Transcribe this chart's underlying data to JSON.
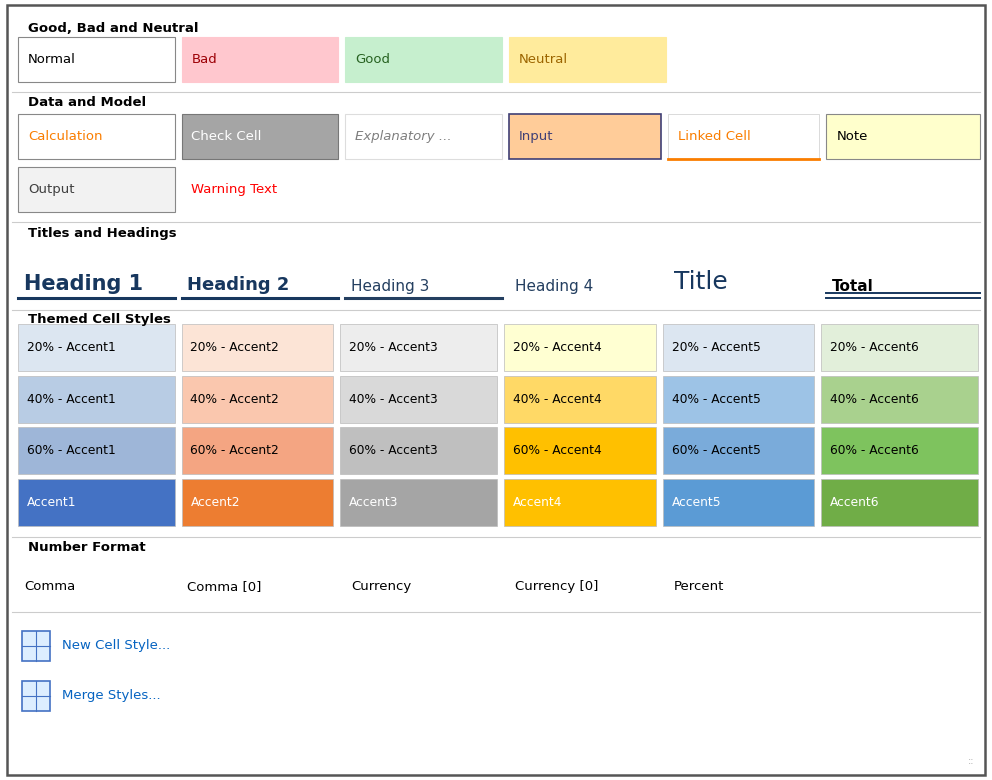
{
  "bg_color": "#ffffff",
  "outer_border": "#555555",
  "section1_title": "Good, Bad and Neutral",
  "section2_title": "Data and Model",
  "section3_title": "Titles and Headings",
  "section4_title": "Themed Cell Styles",
  "section5_title": "Number Format",
  "good_bad_cells": [
    {
      "label": "Normal",
      "bg": "#ffffff",
      "fg": "#000000",
      "border": "#888888"
    },
    {
      "label": "Bad",
      "bg": "#ffc7ce",
      "fg": "#9c0006",
      "border": "#ffc7ce"
    },
    {
      "label": "Good",
      "bg": "#c6efce",
      "fg": "#276221",
      "border": "#c6efce"
    },
    {
      "label": "Neutral",
      "bg": "#ffeb9c",
      "fg": "#9c6500",
      "border": "#ffeb9c"
    }
  ],
  "data_model_row1": [
    {
      "label": "Calculation",
      "bg": "#ffffff",
      "fg": "#fa7d00",
      "border": "#888888",
      "italic": false
    },
    {
      "label": "Check Cell",
      "bg": "#a5a5a5",
      "fg": "#ffffff",
      "border": "#777777",
      "italic": false
    },
    {
      "label": "Explanatory ...",
      "bg": "#ffffff",
      "fg": "#7f7f7f",
      "border": "#dddddd",
      "italic": true
    },
    {
      "label": "Input",
      "bg": "#ffcc99",
      "fg": "#3f3f76",
      "border": "#3f3f76",
      "italic": false
    },
    {
      "label": "Linked Cell",
      "bg": "#ffffff",
      "fg": "#fa7d00",
      "border": "#fa7d00",
      "italic": false,
      "linked": true
    },
    {
      "label": "Note",
      "bg": "#ffffcc",
      "fg": "#000000",
      "border": "#888888",
      "italic": false
    }
  ],
  "data_model_row2": [
    {
      "label": "Output",
      "bg": "#f2f2f2",
      "fg": "#3f3f3f",
      "border": "#888888"
    },
    {
      "label": "Warning Text",
      "bg": "#ffffff",
      "fg": "#ff0000",
      "border": "#ffffff"
    }
  ],
  "headings": [
    {
      "label": "Heading 1",
      "fg": "#17375e",
      "size": 15,
      "bold": true,
      "underline": true,
      "underline_color": "#17375e"
    },
    {
      "label": "Heading 2",
      "fg": "#17375e",
      "size": 13,
      "bold": true,
      "underline": true,
      "underline_color": "#17375e"
    },
    {
      "label": "Heading 3",
      "fg": "#243f60",
      "size": 11,
      "bold": false,
      "underline": true,
      "underline_color": "#243f60"
    },
    {
      "label": "Heading 4",
      "fg": "#243f60",
      "size": 11,
      "bold": false,
      "underline": false
    },
    {
      "label": "Title",
      "fg": "#17375e",
      "size": 18,
      "bold": false,
      "underline": false
    },
    {
      "label": "Total",
      "fg": "#000000",
      "size": 11,
      "bold": true,
      "underline": true,
      "underline_color": "#17375e",
      "double_underline": true
    }
  ],
  "accent_20": [
    {
      "label": "20% - Accent1",
      "bg": "#dce6f1",
      "fg": "#000000"
    },
    {
      "label": "20% - Accent2",
      "bg": "#fce4d6",
      "fg": "#000000"
    },
    {
      "label": "20% - Accent3",
      "bg": "#ededed",
      "fg": "#000000"
    },
    {
      "label": "20% - Accent4",
      "bg": "#ffffd2",
      "fg": "#000000"
    },
    {
      "label": "20% - Accent5",
      "bg": "#dce6f1",
      "fg": "#000000"
    },
    {
      "label": "20% - Accent6",
      "bg": "#e2efda",
      "fg": "#000000"
    }
  ],
  "accent_40": [
    {
      "label": "40% - Accent1",
      "bg": "#b8cce4",
      "fg": "#000000"
    },
    {
      "label": "40% - Accent2",
      "bg": "#fac7ae",
      "fg": "#000000"
    },
    {
      "label": "40% - Accent3",
      "bg": "#d9d9d9",
      "fg": "#000000"
    },
    {
      "label": "40% - Accent4",
      "bg": "#ffd966",
      "fg": "#000000"
    },
    {
      "label": "40% - Accent5",
      "bg": "#9dc3e6",
      "fg": "#000000"
    },
    {
      "label": "40% - Accent6",
      "bg": "#a9d18e",
      "fg": "#000000"
    }
  ],
  "accent_60": [
    {
      "label": "60% - Accent1",
      "bg": "#9eb6d8",
      "fg": "#000000"
    },
    {
      "label": "60% - Accent2",
      "bg": "#f4a582",
      "fg": "#000000"
    },
    {
      "label": "60% - Accent3",
      "bg": "#bfbfbf",
      "fg": "#000000"
    },
    {
      "label": "60% - Accent4",
      "bg": "#ffc000",
      "fg": "#000000"
    },
    {
      "label": "60% - Accent5",
      "bg": "#7aabda",
      "fg": "#000000"
    },
    {
      "label": "60% - Accent6",
      "bg": "#7ec35e",
      "fg": "#000000"
    }
  ],
  "accent_100": [
    {
      "label": "Accent1",
      "bg": "#4472c4",
      "fg": "#ffffff"
    },
    {
      "label": "Accent2",
      "bg": "#ed7d31",
      "fg": "#ffffff"
    },
    {
      "label": "Accent3",
      "bg": "#a5a5a5",
      "fg": "#ffffff"
    },
    {
      "label": "Accent4",
      "bg": "#ffc000",
      "fg": "#ffffff"
    },
    {
      "label": "Accent5",
      "bg": "#5b9bd5",
      "fg": "#ffffff"
    },
    {
      "label": "Accent6",
      "bg": "#70ad47",
      "fg": "#ffffff"
    }
  ],
  "number_formats": [
    "Comma",
    "Comma [0]",
    "Currency",
    "Currency [0]",
    "Percent"
  ],
  "bottom_items": [
    "New Cell Style...",
    "Merge Styles..."
  ],
  "icon_color_outer": "#4472c4",
  "icon_color_inner": "#ffffff",
  "link_color": "#0563c1"
}
